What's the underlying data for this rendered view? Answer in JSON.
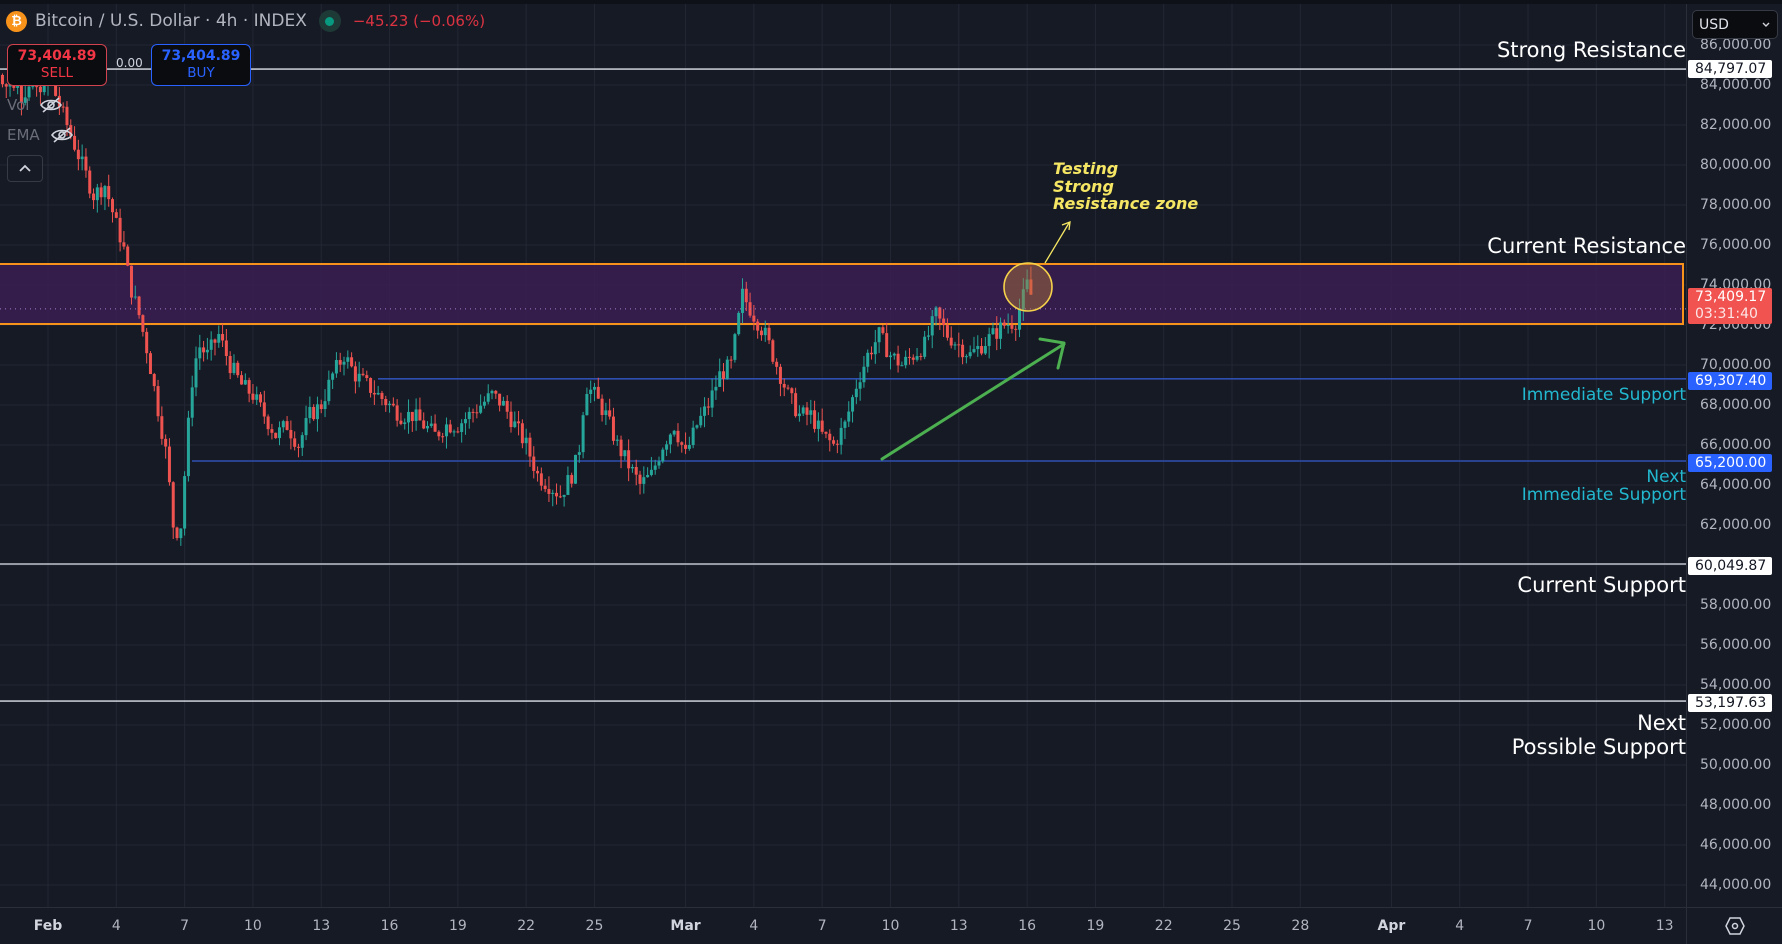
{
  "header": {
    "symbol_title": "Bitcoin / U.S. Dollar · 4h · INDEX",
    "coin_icon": "bitcoin-icon",
    "change": "−45.23 (−0.06%)",
    "market_status": "open"
  },
  "trade": {
    "sell_price": "73,404.89",
    "sell_label": "SELL",
    "spread": "0.00",
    "buy_price": "73,404.89",
    "buy_label": "BUY"
  },
  "indicators": [
    {
      "label": "Vol",
      "icon": "eye-off-icon"
    },
    {
      "label": "EMA",
      "icon": "eye-off-icon"
    }
  ],
  "collapse_icon": "chevron-up-icon",
  "currency_select": "USD",
  "colors": {
    "up": "#26a69a",
    "down": "#ef5350",
    "zone_border": "#f7931a",
    "zone_fill": "#3a1f52",
    "support_line": "#2f4fb0",
    "level_line": "#e0e3eb",
    "annotation": "#f5e663",
    "trend_arrow": "#4caf50",
    "cyan_label": "#22b8cf"
  },
  "chart_data": {
    "type": "candlestick",
    "title": "Bitcoin / U.S. Dollar · 4h · INDEX",
    "xlabel": "",
    "ylabel": "USD",
    "ylim": [
      43000,
      86500
    ],
    "grid": true,
    "y_ticks": [
      "86,000.00",
      "84,000.00",
      "82,000.00",
      "80,000.00",
      "78,000.00",
      "76,000.00",
      "74,000.00",
      "72,000.00",
      "70,000.00",
      "68,000.00",
      "66,000.00",
      "64,000.00",
      "62,000.00",
      "60,000.00",
      "58,000.00",
      "56,000.00",
      "54,000.00",
      "52,000.00",
      "50,000.00",
      "48,000.00",
      "46,000.00",
      "44,000.00"
    ],
    "x_ticks": [
      {
        "label": "Feb",
        "bold": true
      },
      {
        "label": "4"
      },
      {
        "label": "7"
      },
      {
        "label": "10"
      },
      {
        "label": "13"
      },
      {
        "label": "16"
      },
      {
        "label": "19"
      },
      {
        "label": "22"
      },
      {
        "label": "25"
      },
      {
        "label": "Mar",
        "bold": true
      },
      {
        "label": "4"
      },
      {
        "label": "7"
      },
      {
        "label": "10"
      },
      {
        "label": "13"
      },
      {
        "label": "16"
      },
      {
        "label": "19"
      },
      {
        "label": "22"
      },
      {
        "label": "25"
      },
      {
        "label": "28"
      },
      {
        "label": "Apr",
        "bold": true
      },
      {
        "label": "4"
      },
      {
        "label": "7"
      },
      {
        "label": "10"
      },
      {
        "label": "13"
      }
    ],
    "current_price": {
      "value": "73,409.17",
      "countdown": "03:31:40"
    },
    "levels": [
      {
        "name": "Strong Resistance",
        "value": "84,797.07",
        "price": 84797.07,
        "style": "white"
      },
      {
        "name": "Immediate Support",
        "value": "69,307.40",
        "price": 69307.4,
        "style": "blue"
      },
      {
        "name": "Next Immediate Support",
        "value": "65,200.00",
        "price": 65200.0,
        "style": "blue"
      },
      {
        "name": "Current Support",
        "value": "60,049.87",
        "price": 60049.87,
        "style": "white"
      },
      {
        "name": "Next Possible Support",
        "value": "53,197.63",
        "price": 53197.63,
        "style": "white"
      }
    ],
    "zones": [
      {
        "name": "Current Resistance",
        "from": 72050,
        "to": 75050
      }
    ],
    "annotations": [
      {
        "text": "Testing\nStrong\nResistance zone",
        "type": "callout",
        "target": "last candle in resistance zone"
      },
      {
        "text": "",
        "type": "trend-arrow",
        "from_price": 65300,
        "to_price": 71500
      }
    ],
    "price_path_day_offsets_from_feb1": [
      0,
      0.5,
      1,
      1.5,
      2,
      2.5,
      3,
      3.3,
      3.6,
      4,
      4.4,
      4.8,
      5.2,
      5.5,
      5.8,
      6,
      6.3,
      6.6,
      7,
      7.5,
      8,
      8.5,
      9,
      9.5,
      10,
      10.5,
      11,
      11.5,
      12,
      12.5,
      13,
      13.5,
      14,
      14.5,
      15,
      15.5,
      16,
      16.5,
      17,
      17.5,
      18,
      18.5,
      19,
      19.5,
      20,
      20.5,
      21,
      21.5,
      22,
      22.5,
      23,
      23.3,
      23.6,
      24,
      24.5,
      25,
      25.5,
      26,
      26.5,
      27,
      27.5,
      28,
      28.5,
      29,
      29.5,
      30,
      30.5,
      31,
      31.5,
      32,
      32.5,
      33,
      33.5,
      34,
      34.5,
      35,
      35.5,
      36,
      36.5,
      37,
      37.5,
      38,
      38.5,
      39,
      39.5,
      40,
      40.5,
      41,
      41.5,
      42,
      42.5,
      43,
      43.2
    ],
    "price_path_close": [
      84500,
      83000,
      81500,
      80000,
      78500,
      79000,
      77000,
      76000,
      74000,
      72500,
      70500,
      68000,
      65500,
      62000,
      61500,
      64500,
      69000,
      71000,
      70500,
      71500,
      70000,
      69000,
      68500,
      67500,
      66500,
      67000,
      66000,
      67500,
      68000,
      69500,
      70500,
      69500,
      69000,
      68500,
      68000,
      67500,
      67500,
      67000,
      66500,
      67000,
      67000,
      67500,
      68000,
      68500,
      68000,
      67000,
      66000,
      64500,
      64000,
      63500,
      64500,
      65500,
      69000,
      68500,
      67500,
      66000,
      65000,
      64000,
      64500,
      66000,
      67000,
      65500,
      67000,
      68000,
      69500,
      70000,
      73500,
      72500,
      71500,
      70000,
      68500,
      67500,
      67500,
      66500,
      66000,
      67000,
      69000,
      70500,
      71500,
      70500,
      70000,
      70500,
      71000,
      72500,
      71500,
      71000,
      70500,
      71000,
      71500,
      72000,
      72200,
      74000,
      73409
    ]
  },
  "settings_icon": "settings-hexagon-icon"
}
